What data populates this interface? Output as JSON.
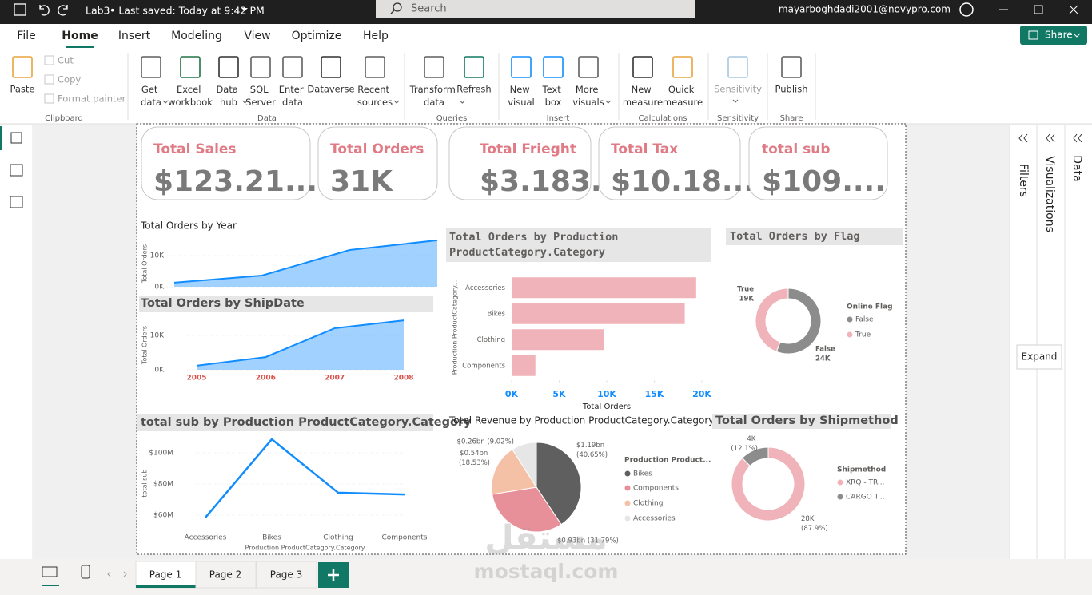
{
  "title_bar": {
    "file": "Lab3",
    "saved": "• Last saved: Today at 9:42 PM",
    "search": "Search",
    "user": "mayarboghdadi2001@novypro.com"
  },
  "menu": {
    "tabs": [
      "File",
      "Home",
      "Insert",
      "Modeling",
      "View",
      "Optimize",
      "Help"
    ],
    "share": "Share"
  },
  "ribbon": {
    "groups": [
      {
        "name": "Clipboard",
        "buttons": [
          "Paste",
          "Cut",
          "Copy",
          "Format painter"
        ]
      },
      {
        "name": "Data",
        "buttons": [
          "Get data",
          "Excel workbook",
          "Data hub",
          "SQL Server",
          "Enter data",
          "Dataverse",
          "Recent sources"
        ]
      },
      {
        "name": "Queries",
        "buttons": [
          "Transform data",
          "Refresh"
        ]
      },
      {
        "name": "Insert",
        "buttons": [
          "New visual",
          "Text box",
          "More visuals"
        ]
      },
      {
        "name": "Calculations",
        "buttons": [
          "New measure",
          "Quick measure"
        ]
      },
      {
        "name": "Sensitivity",
        "buttons": [
          "Sensitivity"
        ]
      },
      {
        "name": "Share",
        "buttons": [
          "Publish"
        ]
      }
    ]
  },
  "cards": [
    {
      "label": "Total Sales",
      "value": "$123.21..."
    },
    {
      "label": "Total Orders",
      "value": "31K"
    },
    {
      "label": "Total Frieght",
      "value": "$3.183..."
    },
    {
      "label": "Total Tax",
      "value": "$10.18..."
    },
    {
      "label": "total sub",
      "value": "$109...."
    }
  ],
  "chart_data": [
    {
      "type": "area",
      "title": "Total Orders by Year",
      "ylabel": "Total Orders",
      "categories": [
        null,
        null,
        null,
        null
      ],
      "values": [
        1300,
        3600,
        11800,
        14900
      ],
      "color": "#118dff",
      "ylim": [
        0,
        15000
      ],
      "yticks": [
        {
          "value": 0,
          "label": "0K"
        },
        {
          "value": 10000,
          "label": "10K"
        }
      ]
    },
    {
      "type": "area",
      "title": "Total Orders by ShipDate",
      "ylabel": "Total Orders",
      "categories": [
        "2005",
        "2006",
        "2007",
        "2008"
      ],
      "values": [
        1200,
        3700,
        12100,
        14400
      ],
      "color": "#118dff",
      "xtick_color": "#d9534f",
      "ylim": [
        0,
        15000
      ],
      "yticks": [
        {
          "value": 0,
          "label": "0K"
        },
        {
          "value": 10000,
          "label": "10K"
        }
      ]
    },
    {
      "type": "hbar",
      "title": "Total Orders by Production ProductCategory.Category",
      "xlabel": "Total Orders",
      "ylabel": "Production ProductCategory...",
      "categories": [
        "Accessories",
        "Bikes",
        "Clothing",
        "Components"
      ],
      "values": [
        19400,
        18200,
        9750,
        2500
      ],
      "color": "#f0b3b9",
      "xlim": [
        0,
        20000
      ],
      "xtick_color": "#118dff",
      "xticks": [
        {
          "value": 0,
          "label": "0K"
        },
        {
          "value": 5000,
          "label": "5K"
        },
        {
          "value": 10000,
          "label": "10K"
        },
        {
          "value": 15000,
          "label": "15K"
        },
        {
          "value": 20000,
          "label": "20K"
        }
      ]
    },
    {
      "type": "donut",
      "title": "Total Orders by Flag",
      "legend_title": "Online Flag",
      "categories": [
        "False",
        "True"
      ],
      "values": [
        24000,
        19000
      ],
      "value_labels": [
        "24K",
        "19K"
      ],
      "colors": [
        "#8c8c8c",
        "#f0b3b9"
      ]
    },
    {
      "type": "line",
      "title": "total sub by Production ProductCategory.Category",
      "xlabel": "Production ProductCategory.Category",
      "ylabel": "total sub",
      "categories": [
        "Accessories",
        "Bikes",
        "Clothing",
        "Components"
      ],
      "values": [
        58.5,
        108.7,
        74.4,
        73.3
      ],
      "color": "#118dff",
      "ylim": [
        55,
        113
      ],
      "yticks": [
        {
          "value": 60,
          "label": "$60M"
        },
        {
          "value": 80,
          "label": "$80M"
        },
        {
          "value": 100,
          "label": "$100M"
        }
      ]
    },
    {
      "type": "pie",
      "title": "Total Revenue by Production ProductCategory.Category",
      "legend_title": "Production Product...",
      "categories": [
        "Bikes",
        "Components",
        "Clothing",
        "Accessories"
      ],
      "values": [
        40.65,
        31.79,
        18.53,
        9.02
      ],
      "value_labels": [
        "$1.19bn (40.65%)",
        "$0.93bn (31.79%)",
        "$0.54bn (18.53%)",
        "$0.26bn (9.02%)"
      ],
      "colors": [
        "#5f5f5f",
        "#e8909a",
        "#f4c1a6",
        "#e6e6e6"
      ]
    },
    {
      "type": "donut",
      "title": "Total Orders by Shipmethod",
      "legend_title": "Shipmethod",
      "categories": [
        "XRQ - TR...",
        "CARGO T..."
      ],
      "values": [
        28000,
        4000
      ],
      "value_labels": [
        "28K (87.9%)",
        "4K (12.1%)"
      ],
      "colors": [
        "#f0b3b9",
        "#8c8c8c"
      ]
    }
  ],
  "panes": [
    "Filters",
    "Visualizations",
    "Data"
  ],
  "tooltip": "Expand",
  "pages": [
    "Page 1",
    "Page 2",
    "Page 3"
  ],
  "watermark": [
    "مستقل",
    "mostaql.com"
  ]
}
